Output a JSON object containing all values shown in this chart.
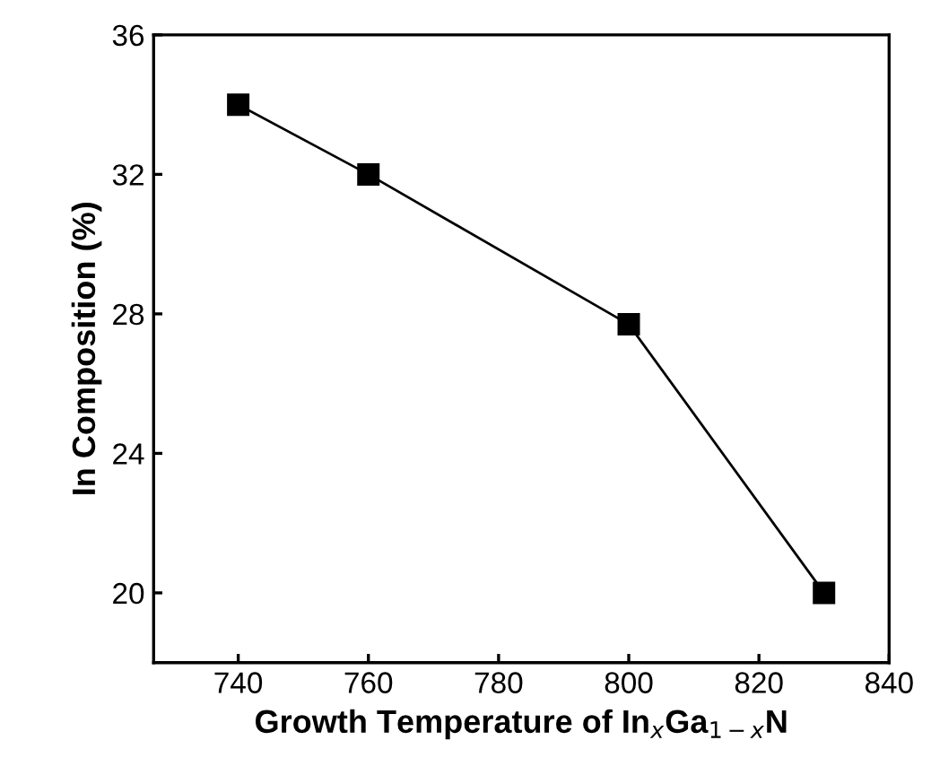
{
  "chart_data": {
    "type": "line",
    "xlabel": "Growth Temperature of In$_{x}$Ga$_{1−x}$N",
    "ylabel": "In Composition (%)",
    "x": [
      740,
      760,
      800,
      830
    ],
    "series": [
      {
        "color": "#000000",
        "values": [
          34.0,
          32.0,
          27.7,
          20.0
        ]
      }
    ],
    "xlim": [
      727,
      840
    ],
    "xticks": [
      740,
      760,
      780,
      800,
      820,
      840
    ],
    "ylim": [
      18,
      36
    ],
    "yticks": [
      20,
      24,
      28,
      32,
      36
    ],
    "marker": "square",
    "line_style": "solid",
    "grid": false,
    "legend": false
  }
}
